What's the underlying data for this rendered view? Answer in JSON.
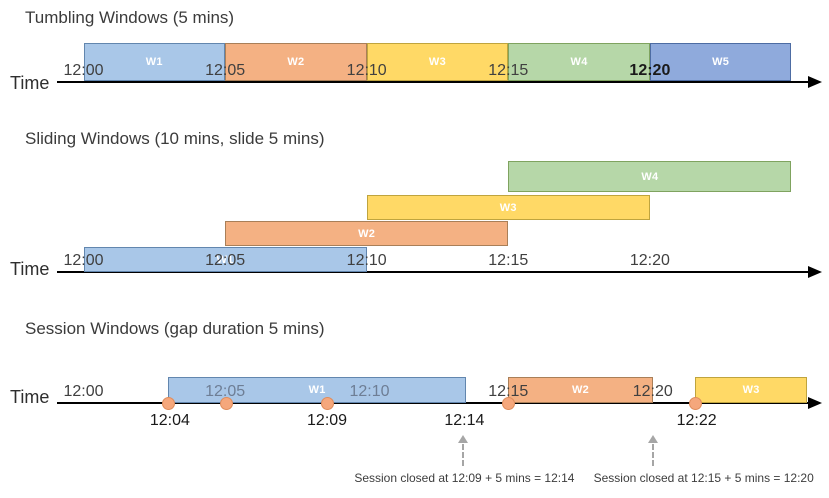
{
  "colors": {
    "blue": {
      "fill": "#A9C7E8",
      "border": "#6286AE"
    },
    "orange": {
      "fill": "#F4B183",
      "border": "#A97F58"
    },
    "yellow": {
      "fill": "#FFD966",
      "border": "#BFA43E"
    },
    "green": {
      "fill": "#B6D7A8",
      "border": "#7FA35F"
    },
    "periwinkle": {
      "fill": "#8FAADC",
      "border": "#4D6CA3"
    },
    "event_dot": {
      "fill": "#F5A77C",
      "border": "#DF8C5B"
    },
    "axis": "#000000",
    "tick_text": "#404040",
    "muted_tick_text": "#6E7E95",
    "annotation_arrow": "#A6A6A6",
    "annotation_text": "#3D3D3D"
  },
  "sections": [
    {
      "id": "tumbling",
      "title": "Tumbling Windows (5 mins)",
      "axis_label": "Time",
      "ticks": [
        {
          "label": "12:00",
          "min": 0
        },
        {
          "label": "12:05",
          "min": 5
        },
        {
          "label": "12:10",
          "min": 10
        },
        {
          "label": "12:15",
          "min": 15
        },
        {
          "label": "12:20",
          "min": 20,
          "emphasis": true
        }
      ],
      "windows": [
        {
          "label": "W1",
          "color": "blue",
          "start_min": 0,
          "end_min": 5
        },
        {
          "label": "W2",
          "color": "orange",
          "start_min": 5,
          "end_min": 10
        },
        {
          "label": "W3",
          "color": "yellow",
          "start_min": 10,
          "end_min": 15
        },
        {
          "label": "W4",
          "color": "green",
          "start_min": 15,
          "end_min": 20
        },
        {
          "label": "W5",
          "color": "periwinkle",
          "start_min": 20,
          "end_min": 25
        }
      ]
    },
    {
      "id": "sliding",
      "title": "Sliding Windows (10 mins, slide 5 mins)",
      "axis_label": "Time",
      "ticks": [
        {
          "label": "12:00",
          "min": 0
        },
        {
          "label": "12:05",
          "min": 5
        },
        {
          "label": "12:10",
          "min": 10
        },
        {
          "label": "12:15",
          "min": 15
        },
        {
          "label": "12:20",
          "min": 20
        }
      ],
      "windows": [
        {
          "label": "W1",
          "color": "blue",
          "start_min": 0,
          "end_min": 10,
          "row": 0
        },
        {
          "label": "W2",
          "color": "orange",
          "start_min": 5,
          "end_min": 15,
          "row": 1
        },
        {
          "label": "W3",
          "color": "yellow",
          "start_min": 10,
          "end_min": 20,
          "row": 2
        },
        {
          "label": "W4",
          "color": "green",
          "start_min": 15,
          "end_min": 25,
          "row": 3
        }
      ]
    },
    {
      "id": "session",
      "title": "Session Windows (gap duration 5 mins)",
      "axis_label": "Time",
      "ticks": [
        {
          "label": "12:00",
          "min": 0
        },
        {
          "label": "12:05",
          "min": 5,
          "muted": true
        },
        {
          "label": "12:10",
          "min": 10.1,
          "muted": true
        },
        {
          "label": "12:15",
          "min": 15
        },
        {
          "label": "12:20",
          "min": 20.1
        }
      ],
      "windows": [
        {
          "label": "W1",
          "color": "blue",
          "start_min": 3.0,
          "end_min": 13.5
        },
        {
          "label": "W2",
          "color": "orange",
          "start_min": 15.0,
          "end_min": 20.1
        },
        {
          "label": "W3",
          "color": "yellow",
          "start_min": 21.6,
          "end_min": 25.55
        }
      ],
      "events": [
        {
          "min": 3.0
        },
        {
          "min": 5.05
        },
        {
          "min": 8.6
        },
        {
          "min": 15.0
        },
        {
          "min": 21.6
        }
      ],
      "event_labels": [
        {
          "label": "12:04",
          "min": 3.05
        },
        {
          "label": "12:09",
          "min": 8.6
        },
        {
          "label": "12:14",
          "min": 13.45
        },
        {
          "label": "12:22",
          "min": 21.65
        }
      ],
      "annotations": [
        {
          "text": "Session closed at 12:09 + 5 mins = 12:14",
          "arrow_min": 13.4,
          "text_min": 13.45
        },
        {
          "text": "Session closed at 12:15 + 5 mins = 12:20",
          "arrow_min": 20.1,
          "text_min": 21.9
        }
      ]
    }
  ]
}
